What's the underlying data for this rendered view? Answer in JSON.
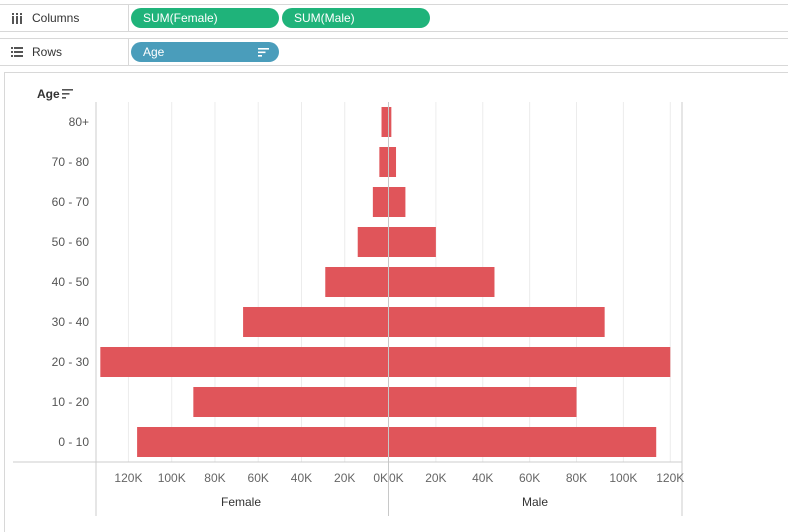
{
  "shelves": {
    "columns": {
      "label": "Columns",
      "pills": [
        "SUM(Female)",
        "SUM(Male)"
      ]
    },
    "rows": {
      "label": "Rows",
      "pills": [
        "Age"
      ]
    }
  },
  "colors": {
    "bar": "#e0555a",
    "measure_pill": "#1fb37a",
    "dimension_pill": "#4a9dbb",
    "grid": "#ececec",
    "axis": "#cccccc",
    "zero_line": "#c8c8c8"
  },
  "chart_data": {
    "type": "bar",
    "orientation": "horizontal",
    "row_header": "Age",
    "categories": [
      "80+",
      "70 - 80",
      "60 - 70",
      "50 - 60",
      "40 - 50",
      "30 - 40",
      "20 - 30",
      "10 - 20",
      "0 - 10"
    ],
    "series": [
      {
        "name": "Female",
        "values": [
          3000,
          4000,
          7000,
          14000,
          29000,
          67000,
          133000,
          90000,
          116000
        ]
      },
      {
        "name": "Male",
        "values": [
          1000,
          3000,
          7000,
          20000,
          45000,
          92000,
          120000,
          80000,
          114000
        ]
      }
    ],
    "female_ticks": [
      "120K",
      "100K",
      "80K",
      "60K",
      "40K",
      "20K",
      "0K"
    ],
    "male_ticks": [
      "0K",
      "20K",
      "40K",
      "60K",
      "80K",
      "100K",
      "120K"
    ],
    "xlim_female": [
      135000,
      0
    ],
    "xlim_male": [
      0,
      125000
    ],
    "grid": true
  }
}
